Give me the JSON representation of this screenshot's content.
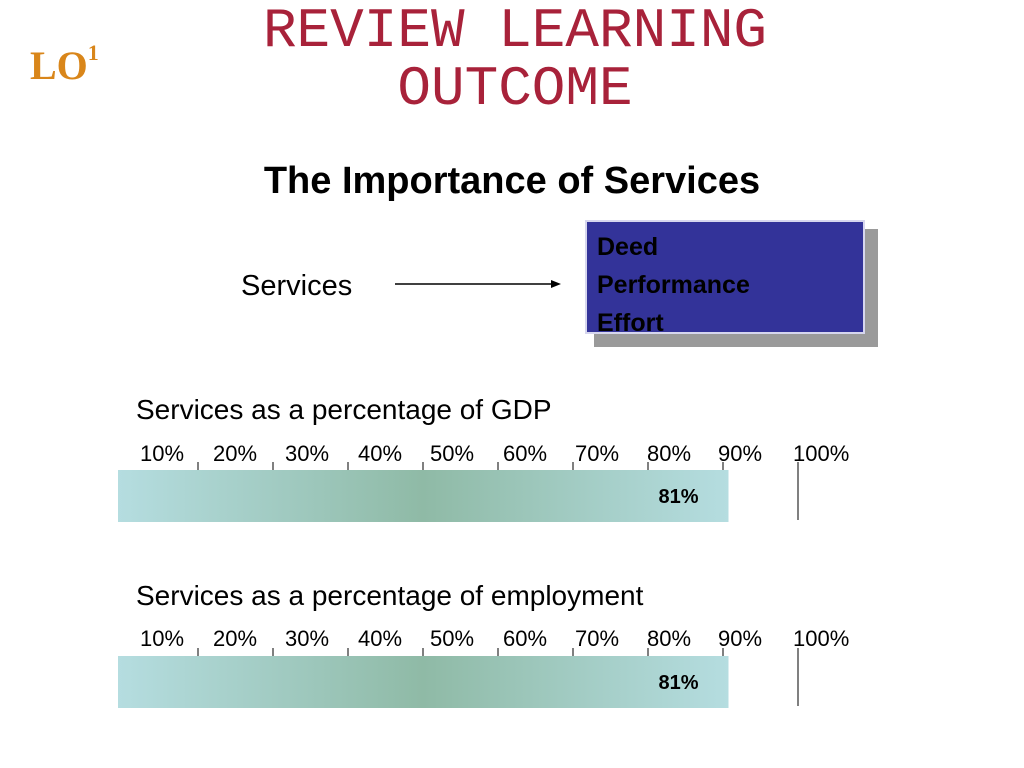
{
  "header": {
    "lo_text": "LO",
    "lo_number": "1",
    "review_line1": "REVIEW LEARNING",
    "review_line2": "OUTCOME",
    "title": "The Importance of Services"
  },
  "definition": {
    "term": "Services",
    "items": [
      "Deed",
      "Performance",
      "Effort"
    ],
    "box_color": "#333399"
  },
  "chart_data": [
    {
      "type": "bar",
      "title": "Services as a percentage of GDP",
      "categories": [
        "Services"
      ],
      "values": [
        81
      ],
      "value_label": "81%",
      "xlim": [
        0,
        100
      ],
      "ticks": [
        "10%",
        "20%",
        "30%",
        "40%",
        "50%",
        "60%",
        "70%",
        "80%",
        "90%",
        "100%"
      ],
      "colors": {
        "bar_edge": "#b5dde0",
        "bar_mid": "#8fbaa6"
      }
    },
    {
      "type": "bar",
      "title": "Services as a percentage of employment",
      "categories": [
        "Services"
      ],
      "values": [
        81
      ],
      "value_label": "81%",
      "xlim": [
        0,
        100
      ],
      "ticks": [
        "10%",
        "20%",
        "30%",
        "40%",
        "50%",
        "60%",
        "70%",
        "80%",
        "90%",
        "100%"
      ],
      "colors": {
        "bar_edge": "#b5dde0",
        "bar_mid": "#8fbaa6"
      }
    }
  ]
}
